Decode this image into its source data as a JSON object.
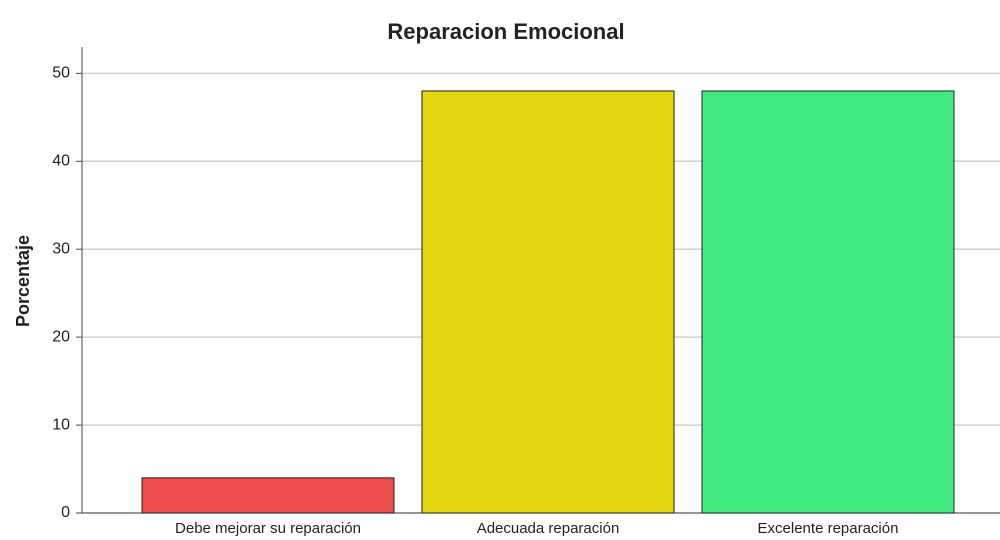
{
  "chart_data": {
    "type": "bar",
    "title": "Reparacion Emocional",
    "y_label": "Porcentaje",
    "categories": [
      "Debe mejorar su reparación",
      "Adecuada reparación",
      "Excelente reparación"
    ],
    "values": [
      4,
      48,
      48
    ],
    "colors": [
      "#ee4b4b",
      "#e3d70f",
      "#40e97d"
    ],
    "ylim": [
      0,
      53
    ],
    "yticks": [
      0,
      10,
      20,
      30,
      40,
      50
    ],
    "grid": true
  }
}
